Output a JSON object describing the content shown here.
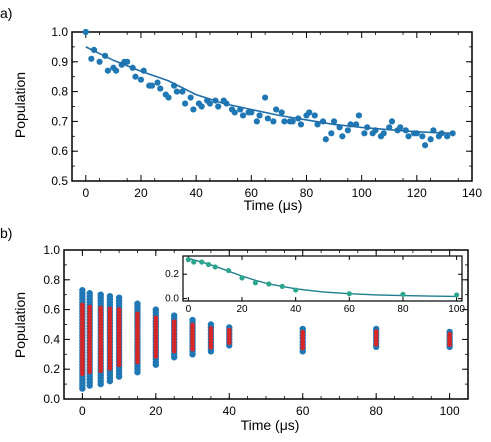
{
  "chart_data": [
    {
      "panel_label": "a)",
      "type": "scatter",
      "xlabel": "Time (μs)",
      "ylabel": "Population",
      "xlim": [
        -5,
        140
      ],
      "ylim": [
        0.5,
        1.0
      ],
      "x_ticks": [
        "0",
        "20",
        "40",
        "60",
        "80",
        "100",
        "120",
        "140"
      ],
      "y_ticks": [
        "0.5",
        "0.6",
        "0.7",
        "0.8",
        "0.9",
        "1.0"
      ],
      "marker_color": "#1f77b4",
      "fit_color": "#1f6fa8",
      "points": [
        [
          0,
          1.0
        ],
        [
          2,
          0.91
        ],
        [
          3,
          0.94
        ],
        [
          5,
          0.9
        ],
        [
          7,
          0.92
        ],
        [
          8,
          0.87
        ],
        [
          10,
          0.88
        ],
        [
          11,
          0.87
        ],
        [
          13,
          0.89
        ],
        [
          14,
          0.9
        ],
        [
          15,
          0.9
        ],
        [
          17,
          0.88
        ],
        [
          18,
          0.85
        ],
        [
          20,
          0.84
        ],
        [
          21,
          0.87
        ],
        [
          23,
          0.82
        ],
        [
          24,
          0.82
        ],
        [
          26,
          0.83
        ],
        [
          27,
          0.81
        ],
        [
          29,
          0.79
        ],
        [
          30,
          0.78
        ],
        [
          32,
          0.82
        ],
        [
          33,
          0.8
        ],
        [
          35,
          0.8
        ],
        [
          36,
          0.76
        ],
        [
          38,
          0.78
        ],
        [
          39,
          0.74
        ],
        [
          41,
          0.76
        ],
        [
          42,
          0.75
        ],
        [
          44,
          0.77
        ],
        [
          45,
          0.76
        ],
        [
          47,
          0.77
        ],
        [
          48,
          0.75
        ],
        [
          50,
          0.77
        ],
        [
          51,
          0.76
        ],
        [
          53,
          0.74
        ],
        [
          54,
          0.73
        ],
        [
          56,
          0.74
        ],
        [
          57,
          0.72
        ],
        [
          59,
          0.73
        ],
        [
          60,
          0.73
        ],
        [
          62,
          0.7
        ],
        [
          63,
          0.72
        ],
        [
          65,
          0.78
        ],
        [
          66,
          0.71
        ],
        [
          68,
          0.7
        ],
        [
          69,
          0.74
        ],
        [
          71,
          0.73
        ],
        [
          72,
          0.7
        ],
        [
          74,
          0.7
        ],
        [
          75,
          0.7
        ],
        [
          77,
          0.71
        ],
        [
          78,
          0.69
        ],
        [
          80,
          0.72
        ],
        [
          81,
          0.73
        ],
        [
          83,
          0.72
        ],
        [
          84,
          0.69
        ],
        [
          86,
          0.7
        ],
        [
          87,
          0.64
        ],
        [
          89,
          0.66
        ],
        [
          90,
          0.7
        ],
        [
          92,
          0.68
        ],
        [
          93,
          0.65
        ],
        [
          95,
          0.67
        ],
        [
          96,
          0.69
        ],
        [
          98,
          0.69
        ],
        [
          99,
          0.72
        ],
        [
          101,
          0.66
        ],
        [
          102,
          0.68
        ],
        [
          104,
          0.66
        ],
        [
          105,
          0.67
        ],
        [
          107,
          0.65
        ],
        [
          108,
          0.66
        ],
        [
          110,
          0.68
        ],
        [
          111,
          0.7
        ],
        [
          113,
          0.67
        ],
        [
          114,
          0.68
        ],
        [
          116,
          0.67
        ],
        [
          117,
          0.65
        ],
        [
          119,
          0.66
        ],
        [
          120,
          0.66
        ],
        [
          122,
          0.65
        ],
        [
          123,
          0.62
        ],
        [
          125,
          0.64
        ],
        [
          126,
          0.67
        ],
        [
          128,
          0.65
        ],
        [
          129,
          0.66
        ],
        [
          131,
          0.65
        ],
        [
          133,
          0.66
        ]
      ],
      "fit": {
        "x": [
          0,
          10,
          20,
          30,
          40,
          50,
          60,
          70,
          80,
          90,
          100,
          110,
          120,
          133
        ],
        "y": [
          0.95,
          0.905,
          0.868,
          0.836,
          0.79,
          0.76,
          0.74,
          0.72,
          0.705,
          0.69,
          0.68,
          0.672,
          0.665,
          0.66
        ]
      }
    },
    {
      "panel_label": "b)",
      "type": "scatter",
      "xlabel": "Time (μs)",
      "ylabel": "Population",
      "xlim": [
        -5,
        105
      ],
      "ylim": [
        0.0,
        1.0
      ],
      "x_ticks": [
        "0",
        "20",
        "40",
        "60",
        "80",
        "100"
      ],
      "y_ticks": [
        "0.0",
        "0.2",
        "0.4",
        "0.6",
        "0.8",
        "1.0"
      ],
      "marker_color": "#1f77b4",
      "highlight_color": "#d62728",
      "columns": [
        {
          "x": 0,
          "min": 0.07,
          "max": 0.73
        },
        {
          "x": 2,
          "min": 0.09,
          "max": 0.71
        },
        {
          "x": 5,
          "min": 0.1,
          "max": 0.7
        },
        {
          "x": 7.5,
          "min": 0.12,
          "max": 0.69
        },
        {
          "x": 10,
          "min": 0.15,
          "max": 0.68
        },
        {
          "x": 15,
          "min": 0.18,
          "max": 0.64
        },
        {
          "x": 20,
          "min": 0.23,
          "max": 0.6
        },
        {
          "x": 25,
          "min": 0.28,
          "max": 0.56
        },
        {
          "x": 30,
          "min": 0.3,
          "max": 0.53
        },
        {
          "x": 35,
          "min": 0.32,
          "max": 0.5
        },
        {
          "x": 40,
          "min": 0.36,
          "max": 0.48
        },
        {
          "x": 60,
          "min": 0.32,
          "max": 0.47
        },
        {
          "x": 80,
          "min": 0.35,
          "max": 0.47
        },
        {
          "x": 100,
          "min": 0.35,
          "max": 0.45
        }
      ],
      "inset": {
        "type": "scatter",
        "xlim": [
          -2,
          102
        ],
        "ylim": [
          -0.02,
          0.35
        ],
        "x_ticks": [
          "0",
          "20",
          "40",
          "60",
          "80",
          "100"
        ],
        "y_ticks": [
          "0.0",
          "0.2"
        ],
        "marker_color": "#2ca58d",
        "fit_color": "#1f7f8f",
        "points": [
          [
            0,
            0.32
          ],
          [
            2,
            0.3
          ],
          [
            5,
            0.3
          ],
          [
            7.5,
            0.28
          ],
          [
            10,
            0.26
          ],
          [
            15,
            0.23
          ],
          [
            20,
            0.17
          ],
          [
            25,
            0.13
          ],
          [
            30,
            0.12
          ],
          [
            35,
            0.1
          ],
          [
            40,
            0.07
          ],
          [
            60,
            0.04
          ],
          [
            80,
            0.035
          ],
          [
            100,
            0.03
          ]
        ],
        "fit": {
          "x": [
            0,
            5,
            10,
            15,
            20,
            25,
            30,
            40,
            50,
            60,
            70,
            80,
            90,
            100
          ],
          "y": [
            0.33,
            0.3,
            0.265,
            0.225,
            0.185,
            0.15,
            0.12,
            0.08,
            0.055,
            0.04,
            0.03,
            0.024,
            0.02,
            0.018
          ]
        }
      }
    }
  ]
}
